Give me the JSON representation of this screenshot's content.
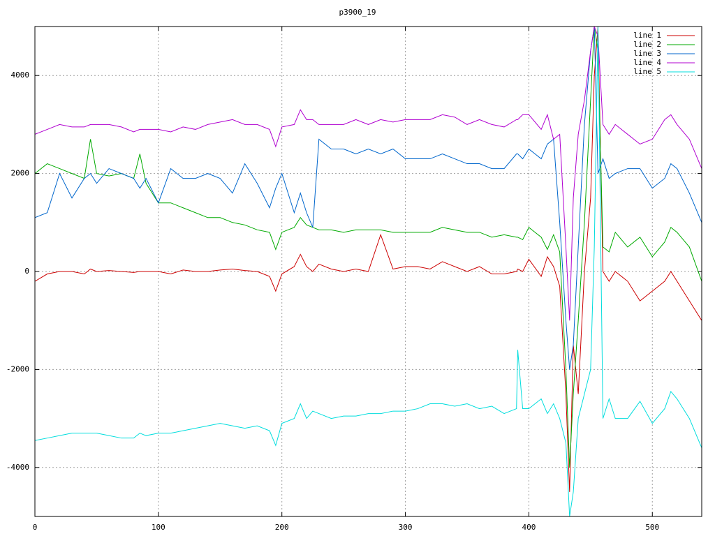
{
  "chart_data": {
    "type": "line",
    "title": "p3900_19",
    "x": [
      0,
      10,
      20,
      30,
      40,
      45,
      50,
      60,
      70,
      80,
      85,
      90,
      100,
      110,
      120,
      130,
      140,
      150,
      160,
      170,
      180,
      190,
      195,
      200,
      210,
      215,
      220,
      225,
      230,
      240,
      250,
      260,
      270,
      280,
      290,
      300,
      310,
      320,
      330,
      340,
      350,
      360,
      370,
      380,
      390,
      391,
      395,
      400,
      410,
      415,
      420,
      425,
      430,
      433,
      436,
      440,
      445,
      450,
      453,
      456,
      460,
      465,
      470,
      480,
      490,
      500,
      510,
      515,
      520,
      530,
      540
    ],
    "series": [
      {
        "name": "line 1",
        "color": "#cc0000",
        "values": [
          -200,
          -50,
          0,
          0,
          -50,
          50,
          0,
          20,
          0,
          -20,
          0,
          0,
          0,
          -50,
          30,
          0,
          0,
          30,
          50,
          20,
          0,
          -100,
          -400,
          -50,
          100,
          350,
          100,
          0,
          150,
          50,
          0,
          50,
          0,
          750,
          50,
          100,
          100,
          50,
          200,
          100,
          0,
          100,
          -50,
          -50,
          0,
          50,
          0,
          250,
          -100,
          300,
          100,
          -300,
          -2500,
          -4500,
          -1500,
          -2500,
          0,
          1500,
          4000,
          5000,
          0,
          -200,
          0,
          -200,
          -600,
          -400,
          -200,
          0,
          -200,
          -600,
          -1000
        ]
      },
      {
        "name": "line 2",
        "color": "#00aa00",
        "values": [
          2000,
          2200,
          2100,
          2000,
          1900,
          2700,
          2000,
          1950,
          2000,
          1900,
          2400,
          1800,
          1400,
          1400,
          1300,
          1200,
          1100,
          1100,
          1000,
          950,
          850,
          800,
          450,
          800,
          900,
          1100,
          950,
          900,
          850,
          850,
          800,
          850,
          850,
          850,
          800,
          800,
          800,
          800,
          900,
          850,
          800,
          800,
          700,
          750,
          700,
          700,
          650,
          900,
          700,
          450,
          750,
          400,
          -2000,
          -4000,
          -2500,
          -1000,
          1000,
          3500,
          5000,
          4500,
          500,
          400,
          800,
          500,
          700,
          300,
          600,
          900,
          800,
          500,
          -200
        ]
      },
      {
        "name": "line 3",
        "color": "#0066cc",
        "values": [
          1100,
          1200,
          2000,
          1500,
          1900,
          2000,
          1800,
          2100,
          2000,
          1900,
          1700,
          1900,
          1400,
          2100,
          1900,
          1900,
          2000,
          1900,
          1600,
          2200,
          1800,
          1300,
          1700,
          2000,
          1200,
          1600,
          1200,
          900,
          2700,
          2500,
          2500,
          2400,
          2500,
          2400,
          2500,
          2300,
          2300,
          2300,
          2400,
          2300,
          2200,
          2200,
          2100,
          2100,
          2400,
          2400,
          2300,
          2500,
          2300,
          2600,
          2700,
          1000,
          -1000,
          -2000,
          -1500,
          500,
          3000,
          4500,
          5000,
          2000,
          2300,
          1900,
          2000,
          2100,
          2100,
          1700,
          1900,
          2200,
          2100,
          1600,
          1000
        ]
      },
      {
        "name": "line 4",
        "color": "#b000d0",
        "values": [
          2800,
          2900,
          3000,
          2950,
          2950,
          3000,
          3000,
          3000,
          2950,
          2850,
          2900,
          2900,
          2900,
          2850,
          2950,
          2900,
          3000,
          3050,
          3100,
          3000,
          3000,
          2900,
          2550,
          2950,
          3000,
          3300,
          3100,
          3100,
          3000,
          3000,
          3000,
          3100,
          3000,
          3100,
          3050,
          3100,
          3100,
          3100,
          3200,
          3150,
          3000,
          3100,
          3000,
          2950,
          3100,
          3100,
          3200,
          3200,
          2900,
          3200,
          2700,
          2800,
          500,
          -1000,
          1500,
          2800,
          3500,
          4500,
          5000,
          4800,
          3000,
          2800,
          3000,
          2800,
          2600,
          2700,
          3100,
          3200,
          3000,
          2700,
          2100
        ]
      },
      {
        "name": "line 5",
        "color": "#00dddd",
        "values": [
          -3450,
          -3400,
          -3350,
          -3300,
          -3300,
          -3300,
          -3300,
          -3350,
          -3400,
          -3400,
          -3300,
          -3350,
          -3300,
          -3300,
          -3250,
          -3200,
          -3150,
          -3100,
          -3150,
          -3200,
          -3150,
          -3250,
          -3550,
          -3100,
          -3000,
          -2700,
          -3000,
          -2850,
          -2900,
          -3000,
          -2950,
          -2950,
          -2900,
          -2900,
          -2850,
          -2850,
          -2800,
          -2700,
          -2700,
          -2750,
          -2700,
          -2800,
          -2750,
          -2900,
          -2800,
          -1600,
          -2800,
          -2800,
          -2600,
          -2900,
          -2700,
          -3000,
          -3500,
          -5000,
          -4500,
          -3000,
          -2500,
          -2000,
          500,
          5000,
          -3000,
          -2600,
          -3000,
          -3000,
          -2650,
          -3100,
          -2800,
          -2450,
          -2600,
          -3000,
          -3600
        ]
      }
    ],
    "xlim": [
      0,
      540
    ],
    "ylim": [
      -5000,
      5000
    ],
    "xticks": [
      0,
      100,
      200,
      300,
      400,
      500
    ],
    "yticks": [
      -4000,
      -2000,
      0,
      2000,
      4000
    ],
    "grid": true,
    "legend": "top-right"
  }
}
